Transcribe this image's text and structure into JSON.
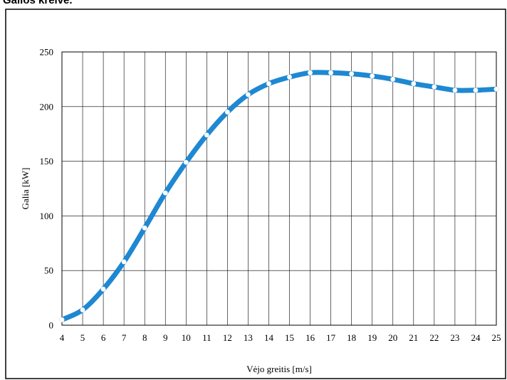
{
  "page_title": "Galios kreivė.",
  "chart_data": {
    "type": "line",
    "title": "",
    "xlabel": "Vėjo greitis [m/s]",
    "ylabel": "Galia [kW]",
    "x": [
      4,
      5,
      6,
      7,
      8,
      9,
      10,
      11,
      12,
      13,
      14,
      15,
      16,
      17,
      18,
      19,
      20,
      21,
      22,
      23,
      24,
      25
    ],
    "series": [
      {
        "values": [
          5,
          14,
          33,
          58,
          89,
          121,
          149,
          174,
          195,
          211,
          221,
          227,
          231,
          231,
          230,
          228,
          225,
          221,
          218,
          215,
          215,
          216
        ]
      }
    ],
    "xlim": [
      4,
      25
    ],
    "ylim": [
      0,
      250
    ],
    "yticks": [
      0,
      50,
      100,
      150,
      200,
      250
    ],
    "grid": true,
    "line_color": "#1E88D2",
    "marker_color": "#FFFFFF"
  }
}
